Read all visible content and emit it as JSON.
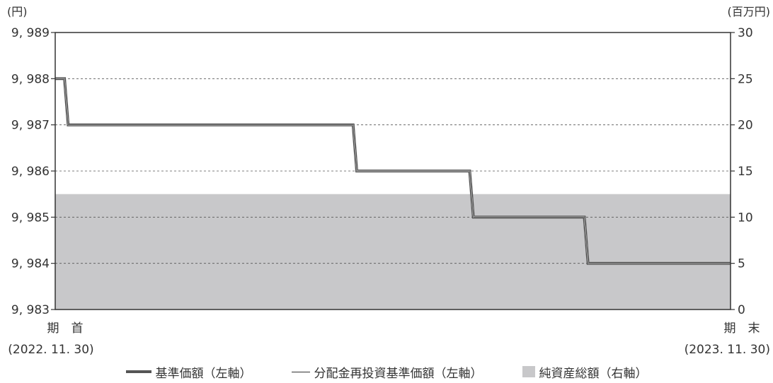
{
  "chart_data": {
    "type": "line",
    "left_axis": {
      "unit": "(円)",
      "ticks": [
        "9, 983",
        "9, 984",
        "9, 985",
        "9, 986",
        "9, 987",
        "9, 988",
        "9, 989"
      ],
      "min": 9983,
      "max": 9989
    },
    "right_axis": {
      "unit": "(百万円)",
      "ticks": [
        "0",
        "5",
        "10",
        "15",
        "20",
        "25",
        "30"
      ],
      "min": 0,
      "max": 30
    },
    "x_axis": {
      "start_label": "期　首",
      "start_date": "(2022. 11. 30)",
      "end_label": "期　末",
      "end_date": "(2023. 11. 30)"
    },
    "grid": "dashed-horizontal",
    "legend": {
      "position": "bottom",
      "items": [
        {
          "label": "基準価額（左軸）",
          "style": "thick-line"
        },
        {
          "label": "分配金再投資基準価額（左軸）",
          "style": "thin-line"
        },
        {
          "label": "純資産総額（右軸）",
          "style": "area"
        }
      ]
    },
    "series": [
      {
        "name": "基準価額（左軸）",
        "axis": "left",
        "points": [
          {
            "x": "2022-11-30",
            "y": 9988
          },
          {
            "x": "2022-12-05",
            "y": 9988
          },
          {
            "x": "2022-12-07",
            "y": 9987
          },
          {
            "x": "2023-05-10",
            "y": 9987
          },
          {
            "x": "2023-05-12",
            "y": 9986
          },
          {
            "x": "2023-07-12",
            "y": 9986
          },
          {
            "x": "2023-07-14",
            "y": 9985
          },
          {
            "x": "2023-09-12",
            "y": 9985
          },
          {
            "x": "2023-09-14",
            "y": 9984
          },
          {
            "x": "2023-11-30",
            "y": 9984
          }
        ]
      },
      {
        "name": "分配金再投資基準価額（左軸）",
        "axis": "left",
        "points": [
          {
            "x": "2022-11-30",
            "y": 9988
          },
          {
            "x": "2022-12-05",
            "y": 9988
          },
          {
            "x": "2022-12-07",
            "y": 9987
          },
          {
            "x": "2023-05-10",
            "y": 9987
          },
          {
            "x": "2023-05-12",
            "y": 9986
          },
          {
            "x": "2023-07-12",
            "y": 9986
          },
          {
            "x": "2023-07-14",
            "y": 9985
          },
          {
            "x": "2023-09-12",
            "y": 9985
          },
          {
            "x": "2023-09-14",
            "y": 9984
          },
          {
            "x": "2023-11-30",
            "y": 9984
          }
        ]
      },
      {
        "name": "純資産総額（右軸）",
        "axis": "right",
        "points": [
          {
            "x": "2022-11-30",
            "y": 12.5
          },
          {
            "x": "2023-11-30",
            "y": 12.5
          }
        ]
      }
    ]
  }
}
